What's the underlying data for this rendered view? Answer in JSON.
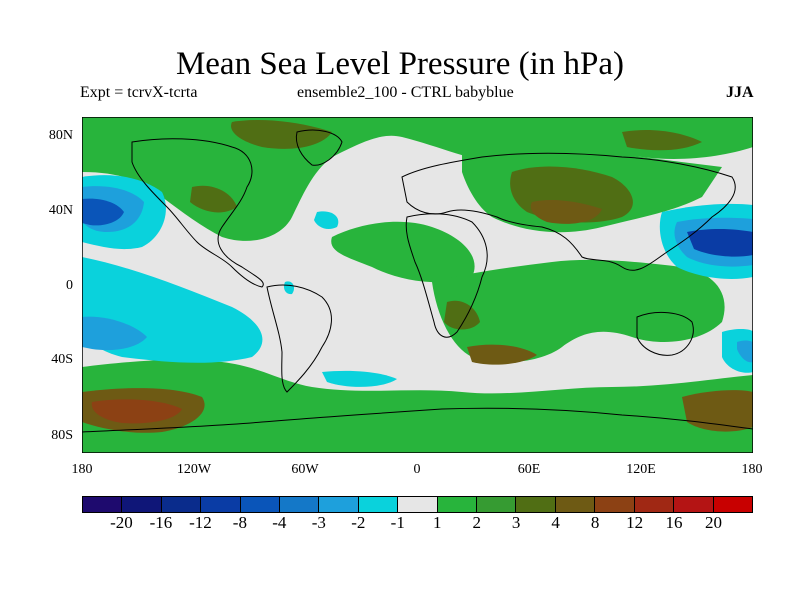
{
  "title": "Mean Sea Level Pressure (in hPa)",
  "subtitle_left": "Expt = tcrvX-tcrta",
  "subtitle_center": "ensemble2_100 - CTRL babyblue",
  "season": "JJA",
  "y_ticks": [
    "80N",
    "40N",
    "0",
    "40S",
    "80S"
  ],
  "x_ticks": [
    "180",
    "120W",
    "60W",
    "0",
    "60E",
    "120E",
    "180"
  ],
  "colorbar": {
    "labels": [
      "-20",
      "-16",
      "-12",
      "-8",
      "-4",
      "-3",
      "-2",
      "-1",
      "1",
      "2",
      "3",
      "4",
      "8",
      "12",
      "16",
      "20"
    ],
    "colors": [
      "#1e0a6e",
      "#0f1678",
      "#0a2c8c",
      "#0a3ca5",
      "#0a55b9",
      "#1478c8",
      "#1ea0dc",
      "#0ad2dc",
      "#e6e6e6",
      "#28b43c",
      "#369b32",
      "#506e14",
      "#6e5a14",
      "#8c4114",
      "#a02814",
      "#b41414",
      "#c80000"
    ]
  },
  "map_colors": {
    "neutral": "#e6e6e6",
    "green": "#28b43c",
    "darkgreen": "#369b32",
    "olive": "#506e14",
    "brown": "#6e5a14",
    "rust": "#8c4114",
    "cyan": "#0ad2dc",
    "lightblue": "#1ea0dc",
    "blue": "#1478c8",
    "midblue": "#0a55b9",
    "deepblue": "#0a3ca5"
  }
}
